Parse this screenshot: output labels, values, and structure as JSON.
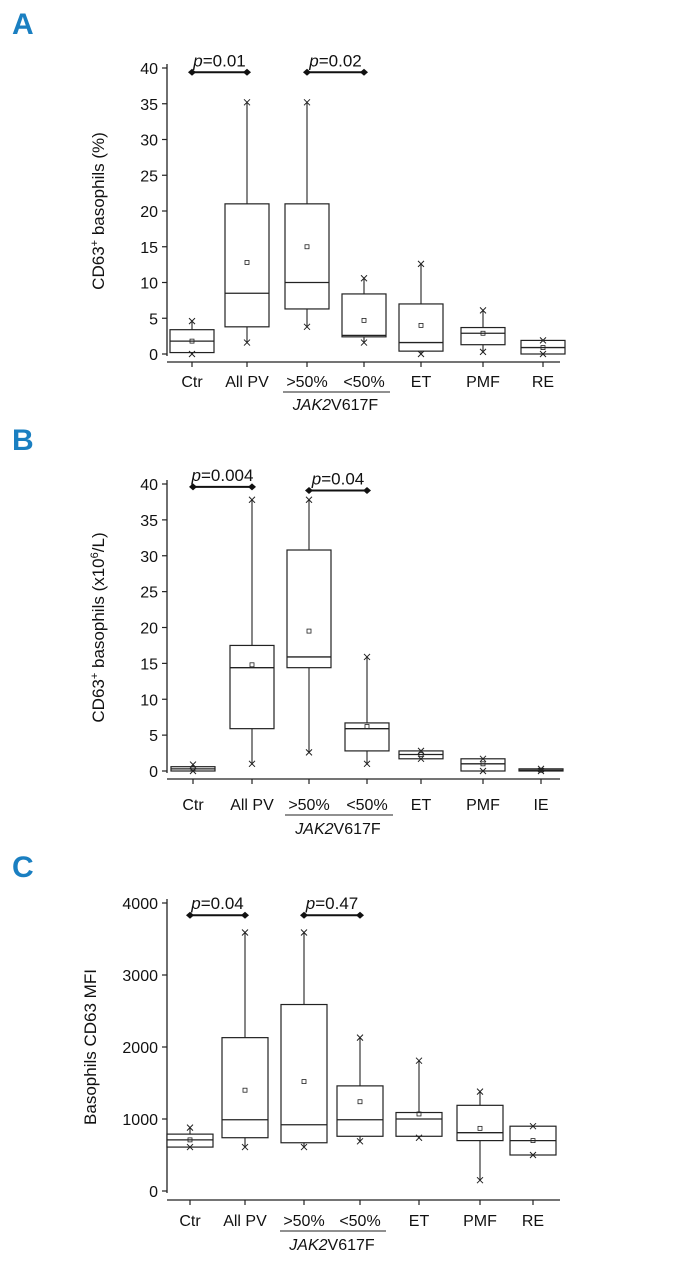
{
  "accent_color": "#1a7fc1",
  "chart_data": [
    {
      "type": "box",
      "panel": "A",
      "ylabel": "CD63+ basophils (%)",
      "ylabel_main": "CD63",
      "ylabel_sup": "+",
      "ylabel_rest": " basophils (%)",
      "ylim": [
        0,
        40
      ],
      "yticks": [
        0,
        5,
        10,
        15,
        20,
        25,
        30,
        35,
        40
      ],
      "categories": [
        "Ctr",
        "All PV",
        ">50%",
        "<50%",
        "ET",
        "PMF",
        "RE"
      ],
      "group_label": "JAK2V617F",
      "group_label_italic": "JAK2",
      "group_label_rest": "V617F",
      "boxes": [
        {
          "cat": "Ctr",
          "whisker_low": 0,
          "q1": 0.2,
          "median": 1.8,
          "q3": 3.4,
          "whisker_high": 4.6,
          "mean": 1.8
        },
        {
          "cat": "All PV",
          "whisker_low": 1.6,
          "q1": 3.8,
          "median": 8.5,
          "q3": 21,
          "whisker_high": 35.2,
          "mean": 12.8
        },
        {
          "cat": ">50%",
          "whisker_low": 3.8,
          "q1": 6.3,
          "median": 10,
          "q3": 21,
          "whisker_high": 35.2,
          "mean": 15
        },
        {
          "cat": "<50%",
          "whisker_low": 1.6,
          "q1": 2.4,
          "median": 2.6,
          "q3": 8.4,
          "whisker_high": 10.6,
          "mean": 4.7
        },
        {
          "cat": "ET",
          "whisker_low": 0,
          "q1": 0.4,
          "median": 1.6,
          "q3": 7,
          "whisker_high": 12.6,
          "mean": 4
        },
        {
          "cat": "PMF",
          "whisker_low": 0.3,
          "q1": 1.3,
          "median": 2.9,
          "q3": 3.7,
          "whisker_high": 6.1,
          "mean": 2.9
        },
        {
          "cat": "RE",
          "whisker_low": 0,
          "q1": 0,
          "median": 0.9,
          "q3": 1.9,
          "whisker_high": 1.9,
          "mean": 0.9
        }
      ],
      "comparisons": [
        {
          "label_p": "p",
          "label_rest": "=0.01",
          "from": "Ctr",
          "to": "All PV",
          "y": 39.4
        },
        {
          "label_p": "p",
          "label_rest": "=0.02",
          "from": ">50%",
          "to": "<50%",
          "y": 39.4
        }
      ]
    },
    {
      "type": "box",
      "panel": "B",
      "ylabel": "CD63+ basophils (x106/L)",
      "ylabel_main": "CD63",
      "ylabel_sup": "+",
      "ylabel_mid": " basophils (x10",
      "ylabel_sup2": "6",
      "ylabel_rest": "/L)",
      "ylim": [
        0,
        40
      ],
      "yticks": [
        0,
        5,
        10,
        15,
        20,
        25,
        30,
        35,
        40
      ],
      "categories": [
        "Ctr",
        "All PV",
        ">50%",
        "<50%",
        "ET",
        "PMF",
        "IE"
      ],
      "group_label": "JAK2V617F",
      "group_label_italic": "JAK2",
      "group_label_rest": "V617F",
      "boxes": [
        {
          "cat": "Ctr",
          "whisker_low": 0,
          "q1": 0,
          "median": 0.3,
          "q3": 0.6,
          "whisker_high": 0.9,
          "mean": 0.3
        },
        {
          "cat": "All PV",
          "whisker_low": 1.0,
          "q1": 5.9,
          "median": 14.4,
          "q3": 17.5,
          "whisker_high": 37.8,
          "mean": 14.8
        },
        {
          "cat": ">50%",
          "whisker_low": 2.6,
          "q1": 14.4,
          "median": 15.9,
          "q3": 30.8,
          "whisker_high": 37.8,
          "mean": 19.5
        },
        {
          "cat": "<50%",
          "whisker_low": 1.0,
          "q1": 2.8,
          "median": 5.9,
          "q3": 6.7,
          "whisker_high": 15.9,
          "mean": 6.2
        },
        {
          "cat": "ET",
          "whisker_low": 1.7,
          "q1": 1.7,
          "median": 2.3,
          "q3": 2.8,
          "whisker_high": 2.8,
          "mean": 2.3
        },
        {
          "cat": "PMF",
          "whisker_low": 0,
          "q1": 0,
          "median": 1.0,
          "q3": 1.7,
          "whisker_high": 1.7,
          "mean": 1.0
        },
        {
          "cat": "IE",
          "whisker_low": 0,
          "q1": 0,
          "median": 0.1,
          "q3": 0.3,
          "whisker_high": 0.3,
          "mean": 0.1
        }
      ],
      "comparisons": [
        {
          "label_p": "p",
          "label_rest": "=0.004",
          "from": "Ctr",
          "to": "All PV",
          "y": 39.6
        },
        {
          "label_p": "p",
          "label_rest": "=0.04",
          "from": ">50%",
          "to": "<50%",
          "y": 39.1
        }
      ]
    },
    {
      "type": "box",
      "panel": "C",
      "ylabel": "Basophils CD63 MFI",
      "ylabel_main": "Basophils CD63 MFI",
      "ylim": [
        0,
        4000
      ],
      "yticks": [
        0,
        1000,
        2000,
        3000,
        4000
      ],
      "categories": [
        "Ctr",
        "All PV",
        ">50%",
        "<50%",
        "ET",
        "PMF",
        "RE"
      ],
      "group_label": "JAK2V617F",
      "group_label_italic": "JAK2",
      "group_label_rest": "V617F",
      "boxes": [
        {
          "cat": "Ctr",
          "whisker_low": 610,
          "q1": 610,
          "median": 710,
          "q3": 790,
          "whisker_high": 880,
          "mean": 710
        },
        {
          "cat": "All PV",
          "whisker_low": 610,
          "q1": 740,
          "median": 990,
          "q3": 2130,
          "whisker_high": 3590,
          "mean": 1400
        },
        {
          "cat": ">50%",
          "whisker_low": 610,
          "q1": 670,
          "median": 920,
          "q3": 2590,
          "whisker_high": 3590,
          "mean": 1520
        },
        {
          "cat": "<50%",
          "whisker_low": 690,
          "q1": 760,
          "median": 990,
          "q3": 1460,
          "whisker_high": 2130,
          "mean": 1240
        },
        {
          "cat": "ET",
          "whisker_low": 740,
          "q1": 760,
          "median": 1000,
          "q3": 1090,
          "whisker_high": 1810,
          "mean": 1070
        },
        {
          "cat": "PMF",
          "whisker_low": 150,
          "q1": 700,
          "median": 810,
          "q3": 1190,
          "whisker_high": 1380,
          "mean": 870
        },
        {
          "cat": "RE",
          "whisker_low": 500,
          "q1": 500,
          "median": 700,
          "q3": 900,
          "whisker_high": 900,
          "mean": 700
        }
      ],
      "comparisons": [
        {
          "label_p": "p",
          "label_rest": "=0.04",
          "from": "Ctr",
          "to": "All PV",
          "y": 3830
        },
        {
          "label_p": "p",
          "label_rest": "=0.47",
          "from": ">50%",
          "to": "<50%",
          "y": 3830
        }
      ]
    }
  ]
}
